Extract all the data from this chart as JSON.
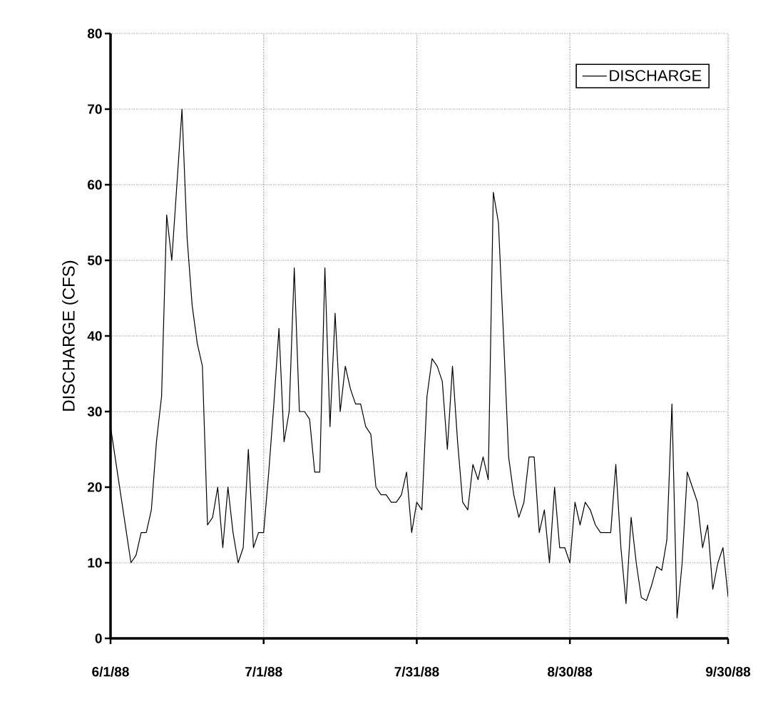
{
  "chart_data": {
    "type": "line",
    "ylabel": "DISCHARGE (CFS)",
    "x": [
      "1988-06-01",
      "1988-06-05",
      "1988-06-06",
      "1988-06-07",
      "1988-06-08",
      "1988-06-09",
      "1988-06-10",
      "1988-06-11",
      "1988-06-12",
      "1988-06-13",
      "1988-06-15",
      "1988-06-16",
      "1988-06-17",
      "1988-06-18",
      "1988-06-19",
      "1988-06-20",
      "1988-06-21",
      "1988-06-22",
      "1988-06-23",
      "1988-06-24",
      "1988-06-25",
      "1988-06-26",
      "1988-06-27",
      "1988-06-28",
      "1988-06-29",
      "1988-06-30",
      "1988-07-01",
      "1988-07-02",
      "1988-07-03",
      "1988-07-04",
      "1988-07-05",
      "1988-07-06",
      "1988-07-07",
      "1988-07-08",
      "1988-07-09",
      "1988-07-10",
      "1988-07-11",
      "1988-07-12",
      "1988-07-13",
      "1988-07-14",
      "1988-07-15",
      "1988-07-16",
      "1988-07-17",
      "1988-07-18",
      "1988-07-19",
      "1988-07-20",
      "1988-07-21",
      "1988-07-22",
      "1988-07-23",
      "1988-07-24",
      "1988-07-25",
      "1988-07-26",
      "1988-07-27",
      "1988-07-28",
      "1988-07-29",
      "1988-07-30",
      "1988-07-31",
      "1988-08-01",
      "1988-08-02",
      "1988-08-03",
      "1988-08-04",
      "1988-08-05",
      "1988-08-06",
      "1988-08-07",
      "1988-08-08",
      "1988-08-09",
      "1988-08-10",
      "1988-08-11",
      "1988-08-12",
      "1988-08-13",
      "1988-08-14",
      "1988-08-15",
      "1988-08-16",
      "1988-08-17",
      "1988-08-18",
      "1988-08-19",
      "1988-08-20",
      "1988-08-21",
      "1988-08-22",
      "1988-08-23",
      "1988-08-24",
      "1988-08-25",
      "1988-08-26",
      "1988-08-27",
      "1988-08-28",
      "1988-08-29",
      "1988-08-30",
      "1988-08-31",
      "1988-09-01",
      "1988-09-02",
      "1988-09-03",
      "1988-09-04",
      "1988-09-05",
      "1988-09-07",
      "1988-09-08",
      "1988-09-09",
      "1988-09-10",
      "1988-09-11",
      "1988-09-12",
      "1988-09-13",
      "1988-09-14",
      "1988-09-15",
      "1988-09-16",
      "1988-09-17",
      "1988-09-18",
      "1988-09-19",
      "1988-09-20",
      "1988-09-21",
      "1988-09-22",
      "1988-09-23",
      "1988-09-24",
      "1988-09-25",
      "1988-09-26",
      "1988-09-27",
      "1988-09-28",
      "1988-09-29",
      "1988-09-30"
    ],
    "series": [
      {
        "name": "DISCHARGE",
        "color": "#000000",
        "values": [
          28,
          10,
          11,
          14,
          14,
          17,
          26,
          32,
          56,
          50,
          70,
          53,
          44,
          39,
          36,
          15,
          16,
          20,
          12,
          20,
          14,
          10,
          12,
          25,
          12,
          14,
          14,
          22,
          31,
          41,
          26,
          30,
          49,
          30,
          30,
          29,
          22,
          22,
          49,
          28,
          43,
          30,
          36,
          33,
          31,
          31,
          28,
          27,
          20,
          19,
          19,
          18,
          18,
          19,
          22,
          14,
          18,
          17,
          32,
          37,
          36,
          34,
          25,
          36,
          26,
          18,
          17,
          23,
          21,
          24,
          21,
          59,
          55,
          40,
          24,
          19,
          16,
          18,
          24,
          24,
          14,
          17,
          10,
          20,
          12,
          12,
          10,
          18,
          15,
          18,
          17,
          15,
          14,
          14,
          23,
          12,
          4.6,
          16,
          10,
          5.4,
          5,
          7,
          9.5,
          9,
          13,
          31,
          2.7,
          10,
          22,
          20,
          18,
          12,
          15,
          6.5,
          10,
          12,
          5.5
        ]
      }
    ],
    "xlim": [
      "1988-06-01",
      "1988-09-30"
    ],
    "xticks": [
      {
        "value": "1988-06-01",
        "label": "6/1/88"
      },
      {
        "value": "1988-07-01",
        "label": "7/1/88"
      },
      {
        "value": "1988-07-31",
        "label": "7/31/88"
      },
      {
        "value": "1988-08-30",
        "label": "8/30/88"
      },
      {
        "value": "1988-09-30",
        "label": "9/30/88"
      }
    ],
    "ylim": [
      0,
      80
    ],
    "yticks": [
      0,
      10,
      20,
      30,
      40,
      50,
      60,
      70,
      80
    ],
    "grid": true,
    "legend": "top right",
    "marker": "none",
    "line_style": "solid"
  }
}
